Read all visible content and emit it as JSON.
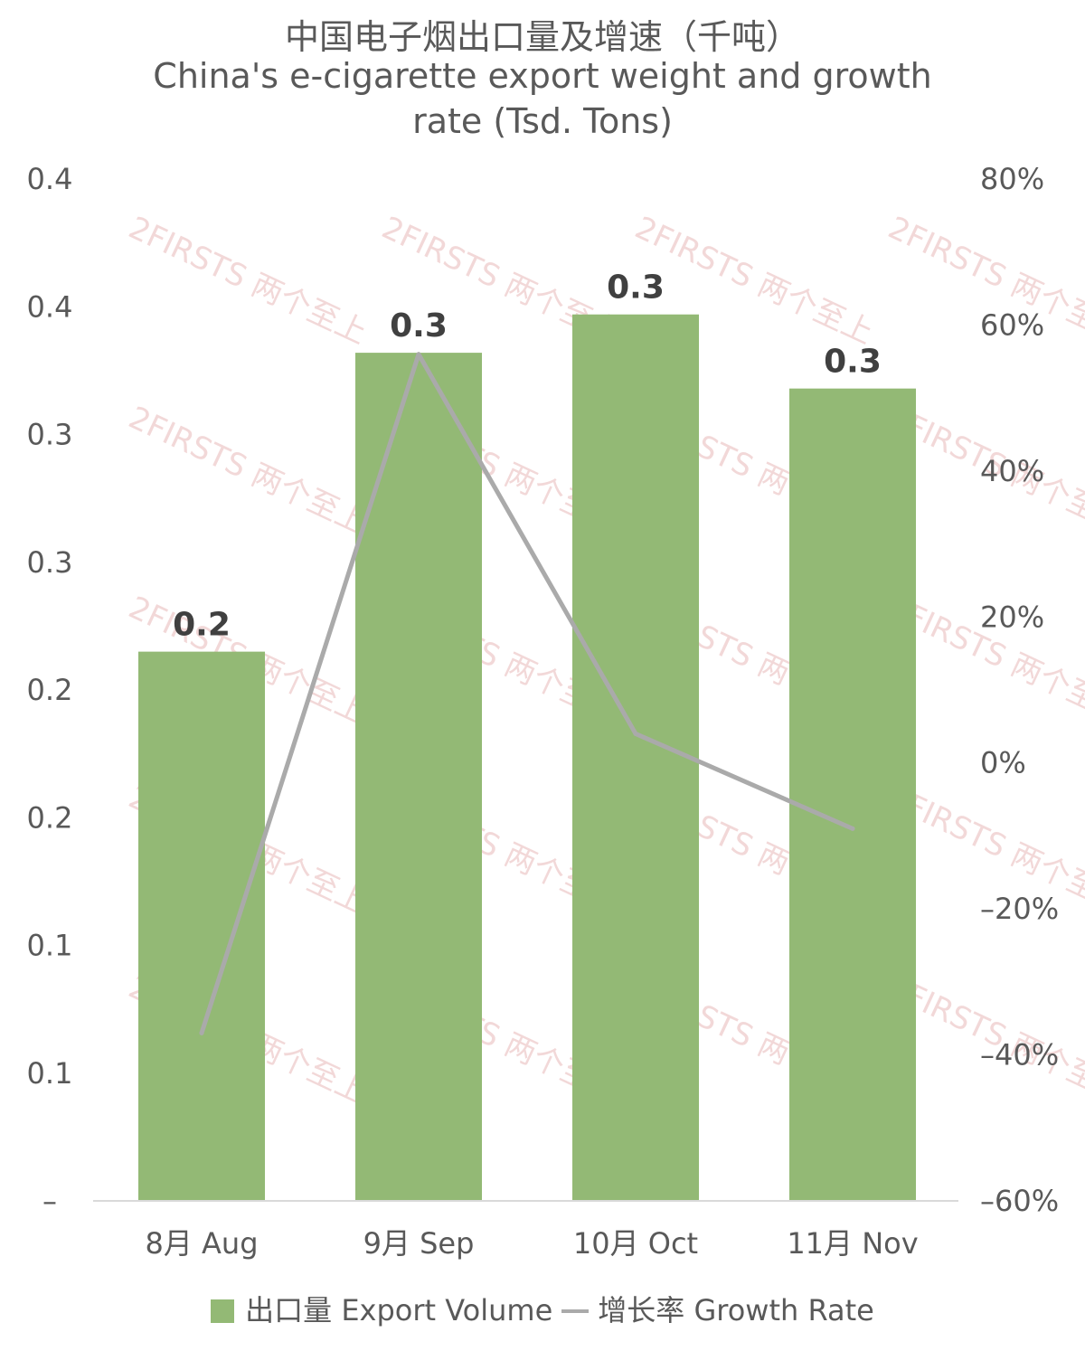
{
  "chart_data": {
    "type": "bar",
    "title_zh": "中国电子烟出口量及增速（千吨）",
    "title_en_line1": "China's e-cigarette export weight and growth",
    "title_en_line2": "rate (Tsd. Tons)",
    "categories": [
      "8月 Aug",
      "9月 Sep",
      "10月 Oct",
      "11月 Nov"
    ],
    "series": [
      {
        "name": "出口量 Export Volume",
        "type": "bar",
        "axis": "left",
        "color": "#93b975",
        "values": [
          0.215,
          0.332,
          0.347,
          0.318
        ],
        "data_labels": [
          "0.2",
          "0.3",
          "0.3",
          "0.3"
        ]
      },
      {
        "name": "增长率 Growth Rate",
        "type": "line",
        "axis": "right",
        "color": "#aaaaaa",
        "values": [
          -37,
          56,
          4,
          -9
        ]
      }
    ],
    "left_axis": {
      "min": 0,
      "max": 0.4,
      "tick_values": [
        0,
        0.05,
        0.1,
        0.15,
        0.2,
        0.25,
        0.3,
        0.35,
        0.4
      ],
      "tick_labels": [
        "–",
        "0.1",
        "0.1",
        "0.2",
        "0.2",
        "0.3",
        "0.3",
        "0.4",
        "0.4"
      ]
    },
    "right_axis": {
      "min": -60,
      "max": 80,
      "unit": "%",
      "tick_values": [
        -60,
        -40,
        -20,
        0,
        20,
        40,
        60,
        80
      ],
      "tick_labels": [
        "–60%",
        "–40%",
        "–20%",
        "0%",
        "20%",
        "40%",
        "60%",
        "80%"
      ]
    },
    "grid": false,
    "legend_position": "bottom",
    "watermark": "2FIRSTS 两个至上"
  },
  "legend": {
    "bar_label": "出口量 Export Volume",
    "line_label": "增长率 Growth Rate"
  }
}
